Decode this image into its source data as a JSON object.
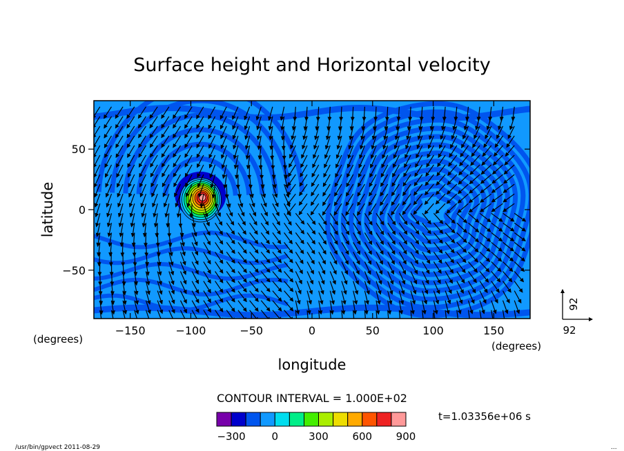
{
  "chart_data": {
    "type": "heatmap",
    "title": "Surface height and Horizontal velocity",
    "xlabel": "longitude",
    "ylabel": "latitude",
    "x_unit_left": "(degrees)",
    "x_unit_right": "(degrees)",
    "xlim": [
      -180,
      180
    ],
    "ylim": [
      -90,
      90
    ],
    "xticks": [
      -150,
      -100,
      -50,
      0,
      50,
      100,
      150
    ],
    "yticks": [
      50,
      0,
      -50
    ],
    "contour_interval": "CONTOUR INTERVAL = 1.000E+02",
    "time": "t=1.03356e+06 s",
    "vector_reference": {
      "x_label": "92",
      "y_label": "92"
    },
    "colorbar": {
      "colors": [
        "#7700aa",
        "#0000cc",
        "#0055ee",
        "#1199ff",
        "#00ddee",
        "#00ee88",
        "#44ee00",
        "#aaee00",
        "#eedd00",
        "#ffaa00",
        "#ff5500",
        "#ee2222",
        "#ff9999"
      ],
      "tick_labels": [
        "-300",
        "0",
        "300",
        "600",
        "900"
      ],
      "tick_values": [
        -300,
        0,
        300,
        600,
        900
      ],
      "range": [
        -400,
        900
      ]
    },
    "field": {
      "background_color": "#1199ff",
      "band_color": "#0055ee",
      "peak": {
        "lon": -92,
        "lat": 8,
        "max": 900
      },
      "depression_min": -300
    }
  },
  "footer": {
    "left": "/usr/bin/gpvect  2011-08-29",
    "right": "..."
  }
}
